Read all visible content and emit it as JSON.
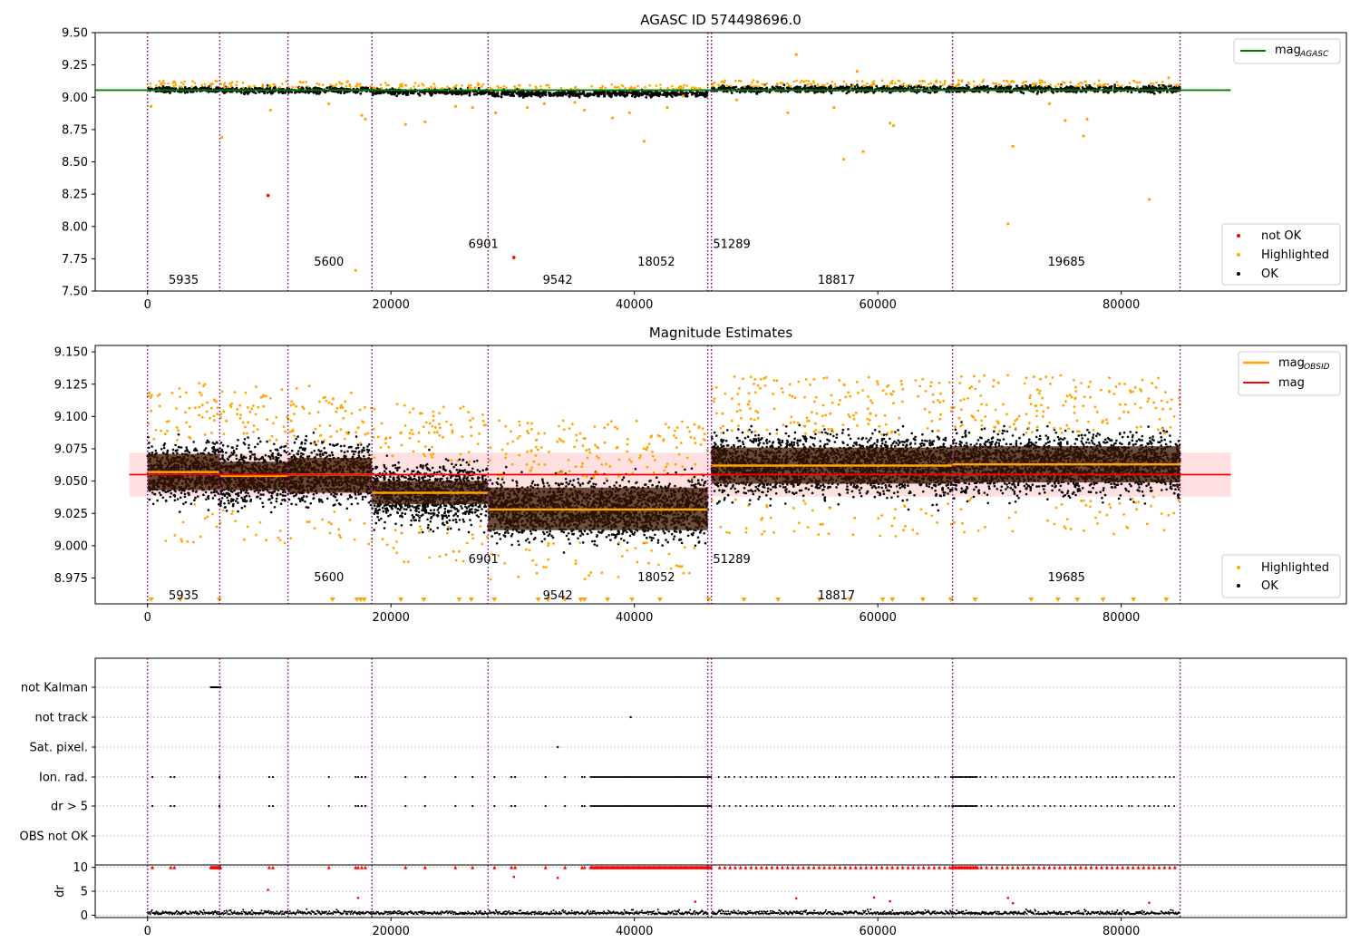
{
  "chart_data": [
    {
      "type": "scatter",
      "title": "AGASC ID 574498696.0",
      "xlim": [
        -4300,
        98500
      ],
      "ylim": [
        7.5,
        9.5
      ],
      "x_ticks": [
        0,
        20000,
        40000,
        60000,
        80000
      ],
      "y_ticks": [
        7.5,
        7.75,
        8.0,
        8.25,
        8.5,
        8.75,
        9.0,
        9.25,
        9.5
      ],
      "y_tick_labels": [
        "7.50",
        "7.75",
        "8.00",
        "8.25",
        "8.50",
        "8.75",
        "9.00",
        "9.25",
        "9.50"
      ],
      "obs_boundaries": [
        0,
        5935,
        11535,
        18436,
        27978,
        46030,
        46330,
        66147,
        84832
      ],
      "obs_labels": [
        {
          "text": "5935",
          "x": 2968,
          "y": 7.59
        },
        {
          "text": "5600",
          "x": 14900,
          "y": 7.73
        },
        {
          "text": "6901",
          "x": 27600,
          "y": 7.87
        },
        {
          "text": "9542",
          "x": 33700,
          "y": 7.59
        },
        {
          "text": "18052",
          "x": 41800,
          "y": 7.73
        },
        {
          "text": "51289",
          "x": 48000,
          "y": 7.87
        },
        {
          "text": "18817",
          "x": 56600,
          "y": 7.59
        },
        {
          "text": "19685",
          "x": 75500,
          "y": 7.73
        }
      ],
      "series": [
        {
          "name": "mag_AGASC",
          "type": "line",
          "color": "#008000",
          "x": [
            -4300,
            89000
          ],
          "y": [
            9.055,
            9.055
          ]
        },
        {
          "name": "not OK",
          "type": "scatter",
          "color": "#ff0000",
          "x": [
            9900,
            30100
          ],
          "y": [
            8.24,
            7.76
          ]
        },
        {
          "name": "Highlighted",
          "type": "scatter",
          "color": "#ffa500",
          "x": [
            300,
            2200,
            5200,
            6100,
            10100,
            14900,
            17100,
            17600,
            17900,
            21200,
            22800,
            25300,
            26700,
            28600,
            31200,
            32600,
            35100,
            35900,
            38200,
            39600,
            40800,
            42700,
            44000,
            47200,
            48400,
            50100,
            52600,
            53300,
            54500,
            56400,
            57200,
            58300,
            58800,
            59600,
            61000,
            61300,
            64800,
            66200,
            70700,
            71100,
            74100,
            75400,
            76900,
            77200,
            82300,
            83900
          ],
          "y": [
            8.93,
            9.12,
            9.1,
            8.69,
            8.9,
            8.95,
            7.66,
            8.86,
            8.83,
            8.79,
            8.81,
            8.93,
            8.92,
            8.88,
            8.92,
            8.95,
            8.96,
            8.9,
            8.84,
            8.88,
            8.66,
            8.92,
            9.01,
            9.12,
            8.98,
            9.12,
            8.88,
            9.33,
            9.1,
            8.92,
            8.52,
            9.2,
            8.58,
            9.11,
            8.8,
            8.78,
            9.12,
            9.19,
            8.02,
            8.62,
            8.95,
            8.82,
            8.7,
            8.83,
            8.21,
            9.15
          ]
        },
        {
          "name": "OK",
          "type": "scatter",
          "color": "#000000",
          "x": [],
          "y": []
        }
      ],
      "legend_top": {
        "placement": "top-right",
        "entries": [
          {
            "label": "mag",
            "sub": "AGASC",
            "color": "#008000"
          }
        ]
      },
      "legend_bottom": {
        "placement": "bottom-right",
        "entries": [
          {
            "label": "not OK",
            "color": "#ff0000"
          },
          {
            "label": "Highlighted",
            "color": "#ffa500"
          },
          {
            "label": "OK",
            "color": "#000000"
          }
        ]
      }
    },
    {
      "type": "scatter",
      "title": "Magnitude Estimates",
      "xlim": [
        -4300,
        98500
      ],
      "ylim": [
        8.955,
        9.155
      ],
      "x_ticks": [
        0,
        20000,
        40000,
        60000,
        80000
      ],
      "y_ticks": [
        8.975,
        9.0,
        9.025,
        9.05,
        9.075,
        9.1,
        9.125,
        9.15
      ],
      "y_tick_labels": [
        "8.975",
        "9.000",
        "9.025",
        "9.050",
        "9.075",
        "9.100",
        "9.125",
        "9.150"
      ],
      "mag": 9.055,
      "mag_band": [
        9.038,
        9.072
      ],
      "observations": [
        {
          "start": 0,
          "end": 5935,
          "mag_obsid": 9.057,
          "band": [
            9.043,
            9.071
          ]
        },
        {
          "start": 5935,
          "end": 11535,
          "mag_obsid": 9.054,
          "band": [
            9.043,
            9.065
          ]
        },
        {
          "start": 11535,
          "end": 18436,
          "mag_obsid": 9.055,
          "band": [
            9.041,
            9.068
          ]
        },
        {
          "start": 18436,
          "end": 27978,
          "mag_obsid": 9.041,
          "band": [
            9.032,
            9.05
          ]
        },
        {
          "start": 27978,
          "end": 46030,
          "mag_obsid": 9.028,
          "band": [
            9.012,
            9.045
          ]
        },
        {
          "start": 46330,
          "end": 66147,
          "mag_obsid": 9.062,
          "band": [
            9.048,
            9.076
          ]
        },
        {
          "start": 66147,
          "end": 84832,
          "mag_obsid": 9.063,
          "band": [
            9.049,
            9.077
          ]
        }
      ],
      "obs_labels": [
        {
          "text": "5935",
          "x": 2968,
          "y": 8.962
        },
        {
          "text": "5600",
          "x": 14900,
          "y": 8.976
        },
        {
          "text": "6901",
          "x": 27600,
          "y": 8.99
        },
        {
          "text": "9542",
          "x": 33700,
          "y": 8.962
        },
        {
          "text": "18052",
          "x": 41800,
          "y": 8.976
        },
        {
          "text": "51289",
          "x": 48000,
          "y": 8.99
        },
        {
          "text": "18817",
          "x": 56600,
          "y": 8.962
        },
        {
          "text": "19685",
          "x": 75500,
          "y": 8.976
        }
      ],
      "legend_top": {
        "placement": "top-right",
        "entries": [
          {
            "label": "mag",
            "sub": "OBSID",
            "color": "#ffa500"
          },
          {
            "label": "mag",
            "color": "#ff0000"
          }
        ]
      },
      "legend_bottom": {
        "placement": "bottom-right",
        "entries": [
          {
            "label": "Highlighted",
            "color": "#ffa500"
          },
          {
            "label": "OK",
            "color": "#000000"
          }
        ]
      }
    },
    {
      "type": "scatter",
      "title": "",
      "xlim": [
        -4300,
        98500
      ],
      "x_ticks": [
        0,
        20000,
        40000,
        60000,
        80000
      ],
      "flag_categories": [
        "not Kalman",
        "not track",
        "Sat. pixel.",
        "Ion. rad.",
        "dr > 5",
        "OBS not OK"
      ],
      "flag_points": {
        "not Kalman": [
          [
            5200,
            6000
          ]
        ],
        "not track": [
          39700
        ],
        "Sat. pixel.": [
          33700
        ],
        "Ion. rad.": [
          400,
          1900,
          2200,
          5900,
          10000,
          10300,
          14900,
          17100,
          17300,
          17600,
          17900,
          21200,
          22800,
          25300,
          26700,
          28500,
          29900,
          30200,
          32700,
          34300,
          35700,
          35900
        ],
        "dr > 5": [
          400,
          1900,
          2200,
          5900,
          10000,
          10300,
          14900,
          17100,
          17300,
          17600,
          17900,
          21200,
          22800,
          25300,
          26700,
          28500,
          29900,
          30200,
          32700,
          34300,
          35700,
          35900
        ],
        "OBS not OK": []
      },
      "dr_ylabel": "dr",
      "dr_ylim": [
        -0.5,
        10.5
      ],
      "dr_y_ticks": [
        0,
        5,
        10
      ],
      "dr_outliers": [
        [
          9900,
          5.3
        ],
        [
          17300,
          3.6
        ],
        [
          30100,
          8.0
        ],
        [
          33700,
          7.8
        ],
        [
          45000,
          2.8
        ],
        [
          53300,
          3.5
        ],
        [
          59700,
          3.7
        ],
        [
          61000,
          2.9
        ],
        [
          70700,
          3.6
        ],
        [
          71100,
          2.5
        ],
        [
          82300,
          2.6
        ]
      ]
    }
  ]
}
